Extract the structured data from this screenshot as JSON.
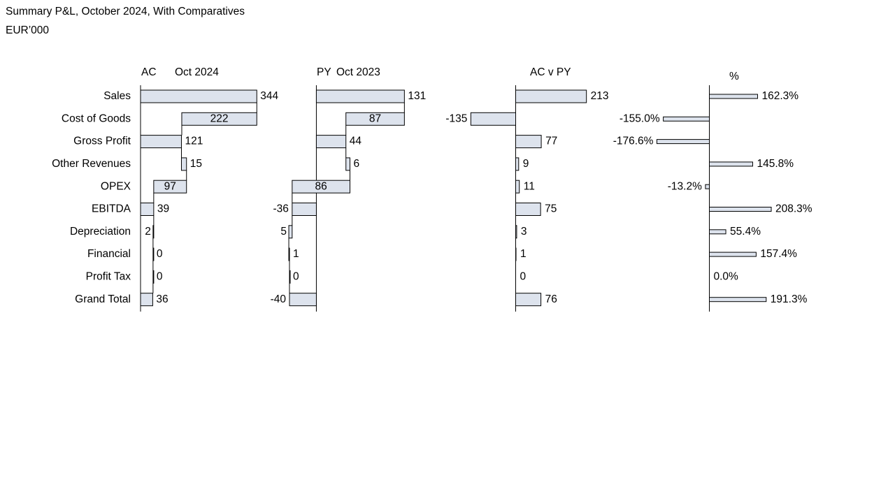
{
  "title": "Summary P&L, October 2024, With Comparatives",
  "subtitle": "EUR’000",
  "chart_data": [
    {
      "type": "waterfall",
      "title": "AC",
      "subtitle": "Oct 2024",
      "categories": [
        "Sales",
        "Cost of Goods",
        "Gross Profit",
        "Other Revenues",
        "OPEX",
        "EBITDA",
        "Depreciation",
        "Financial",
        "Profit Tax",
        "Grand Total"
      ],
      "values": [
        344,
        222,
        121,
        15,
        97,
        39,
        2,
        0,
        0,
        36
      ],
      "measure": [
        "total",
        "decrease",
        "total",
        "increase",
        "decrease",
        "total",
        "decrease",
        "decrease",
        "decrease",
        "total"
      ],
      "xlim": [
        0,
        360
      ],
      "color": "#dde3ed"
    },
    {
      "type": "waterfall",
      "title": "PY",
      "subtitle": "Oct 2023",
      "values": [
        131,
        87,
        44,
        6,
        86,
        -36,
        5,
        1,
        0,
        -40
      ],
      "measure": [
        "total",
        "decrease",
        "total",
        "increase",
        "decrease",
        "total",
        "decrease",
        "increase",
        "decrease",
        "total"
      ],
      "xlim": [
        -40,
        140
      ],
      "color": "#dde3ed"
    },
    {
      "type": "bar",
      "title": "AC v PY",
      "values": [
        213,
        -135,
        77,
        9,
        11,
        75,
        3,
        1,
        0,
        76
      ],
      "xlim": [
        -140,
        220
      ],
      "color": "#dde3ed"
    },
    {
      "type": "bar",
      "title": "%",
      "values": [
        162.3,
        -155.0,
        -176.6,
        145.8,
        -13.2,
        208.3,
        55.4,
        157.4,
        0.0,
        191.3
      ],
      "value_labels": [
        "162.3%",
        "-155.0%",
        "-176.6%",
        "145.8%",
        "-13.2%",
        "208.3%",
        "55.4%",
        "157.4%",
        "0.0%",
        "191.3%"
      ],
      "xlim": [
        -180,
        220
      ],
      "color": "#dde3ed"
    }
  ]
}
